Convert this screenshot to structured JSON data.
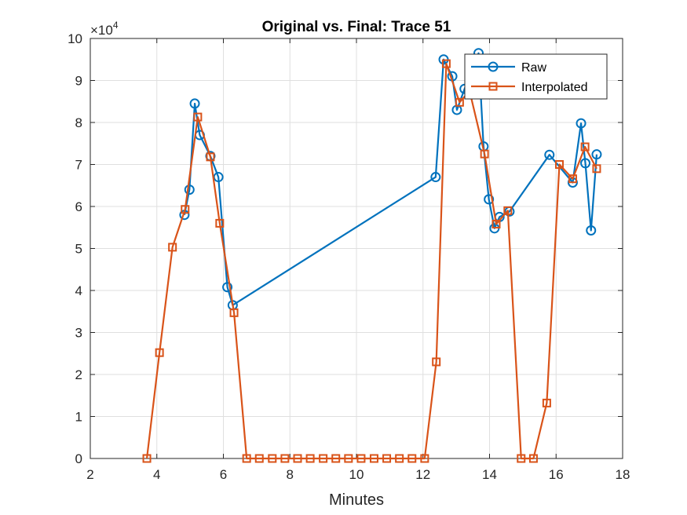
{
  "chart_data": {
    "type": "line",
    "title": "Original vs. Final: Trace 51",
    "xlabel": "Minutes",
    "ylabel": "",
    "xlim": [
      2,
      18
    ],
    "ylim": [
      0,
      100000
    ],
    "x_ticks": [
      2,
      4,
      6,
      8,
      10,
      12,
      14,
      16,
      18
    ],
    "y_ticks": [
      0,
      10000,
      20000,
      30000,
      40000,
      50000,
      60000,
      70000,
      80000,
      90000,
      100000
    ],
    "y_tick_labels": [
      "0",
      "1",
      "2",
      "3",
      "4",
      "5",
      "6",
      "7",
      "8",
      "9",
      "10"
    ],
    "y_exponent_label": "×10",
    "y_exponent_power": "4",
    "grid": true,
    "legend_position": "top-right",
    "series": [
      {
        "name": "Raw",
        "color": "#0072BD",
        "marker": "circle",
        "x": [
          4.83,
          4.98,
          5.14,
          5.29,
          5.61,
          5.85,
          6.12,
          6.28,
          12.38,
          12.62,
          12.88,
          13.02,
          13.25,
          13.67,
          13.82,
          13.98,
          14.15,
          14.3,
          14.6,
          15.8,
          16.5,
          16.75,
          16.88,
          17.05,
          17.22
        ],
        "y": [
          58000,
          64000,
          84500,
          77000,
          72000,
          67000,
          40800,
          36500,
          67000,
          95000,
          91000,
          83000,
          88000,
          96500,
          74300,
          61700,
          54800,
          57500,
          58800,
          72300,
          65700,
          79800,
          70300,
          54300,
          72400
        ]
      },
      {
        "name": "Interpolated",
        "color": "#D95319",
        "marker": "square",
        "x": [
          3.7,
          4.08,
          4.47,
          4.85,
          5.23,
          5.61,
          5.89,
          6.32,
          6.7,
          7.08,
          7.47,
          7.85,
          8.23,
          8.61,
          9.0,
          9.38,
          9.76,
          10.14,
          10.53,
          10.91,
          11.29,
          11.67,
          12.05,
          12.4,
          12.7,
          13.1,
          13.4,
          13.85,
          14.2,
          14.55,
          14.95,
          15.32,
          15.72,
          16.1,
          16.5,
          16.87,
          17.22
        ],
        "y": [
          0,
          25200,
          50300,
          59300,
          81300,
          71800,
          56000,
          34700,
          0,
          0,
          0,
          0,
          0,
          0,
          0,
          0,
          0,
          0,
          0,
          0,
          0,
          0,
          0,
          23000,
          94000,
          84800,
          87500,
          72500,
          55800,
          59000,
          0,
          0,
          13200,
          70000,
          66600,
          74200,
          69000
        ]
      }
    ]
  }
}
